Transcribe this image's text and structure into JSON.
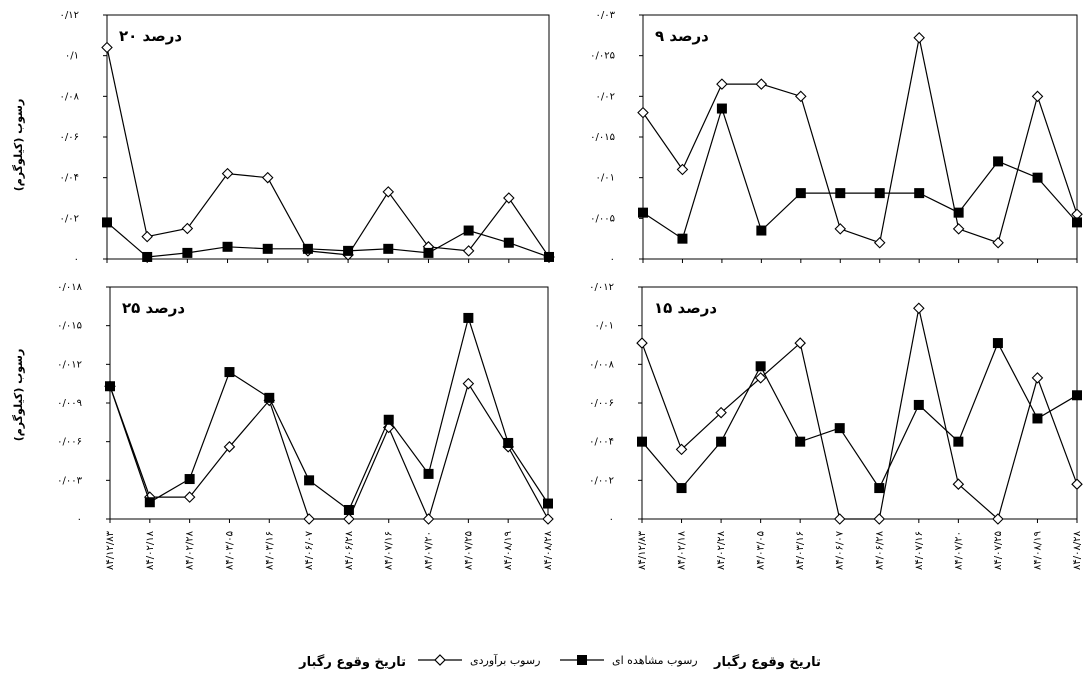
{
  "chart_data": [
    {
      "type": "line",
      "panel_label": "۲۰ درصد",
      "ylabel": "رسوب (کیلوگرم)",
      "y_ticks": [
        "۰",
        "۰/۰۲",
        "۰/۰۴",
        "۰/۰۶",
        "۰/۰۸",
        "۰/۱",
        "۰/۱۲"
      ],
      "ylim": [
        0,
        0.12
      ],
      "series": [
        {
          "name": "رسوب برآوردی",
          "marker": "diamond",
          "values": [
            0.104,
            0.011,
            0.015,
            0.042,
            0.04,
            0.004,
            0.002,
            0.033,
            0.006,
            0.004,
            0.03,
            0.001
          ]
        },
        {
          "name": "رسوب مشاهده ای",
          "marker": "square",
          "values": [
            0.018,
            0.001,
            0.003,
            0.006,
            0.005,
            0.005,
            0.004,
            0.005,
            0.003,
            0.014,
            0.008,
            0.001
          ]
        }
      ]
    },
    {
      "type": "line",
      "panel_label": "۹ درصد",
      "ylabel": "",
      "y_ticks": [
        "۰",
        "۰/۰۰۵",
        "۰/۰۱",
        "۰/۰۱۵",
        "۰/۰۲",
        "۰/۰۲۵",
        "۰/۰۳"
      ],
      "ylim": [
        0,
        0.03
      ],
      "series": [
        {
          "name": "رسوب برآوردی",
          "marker": "diamond",
          "values": [
            0.018,
            0.011,
            0.0215,
            0.0215,
            0.02,
            0.0037,
            0.002,
            0.0272,
            0.0037,
            0.002,
            0.02,
            0.0055
          ]
        },
        {
          "name": "رسوب مشاهده ای",
          "marker": "square",
          "values": [
            0.0057,
            0.0025,
            0.0185,
            0.0035,
            0.0081,
            0.0081,
            0.0081,
            0.0081,
            0.0057,
            0.012,
            0.01,
            0.0045
          ]
        }
      ]
    },
    {
      "type": "line",
      "panel_label": "۲۵ درصد",
      "ylabel": "رسوب (کیلوگرم)",
      "y_ticks": [
        "۰",
        "۰/۰۰۳",
        "۰/۰۰۶",
        "۰/۰۰۹",
        "۰/۰۱۲",
        "۰/۰۱۵",
        "۰/۰۱۸"
      ],
      "ylim": [
        0,
        0.018
      ],
      "series": [
        {
          "name": "رسوب برآوردی",
          "marker": "diamond",
          "values": [
            0.0103,
            0.0017,
            0.0017,
            0.0056,
            0.0092,
            0.0,
            0.0,
            0.0071,
            0.0,
            0.0105,
            0.0056,
            0.0
          ]
        },
        {
          "name": "رسوب مشاهده ای",
          "marker": "square",
          "values": [
            0.0103,
            0.0013,
            0.0031,
            0.0114,
            0.0094,
            0.003,
            0.0007,
            0.0077,
            0.0035,
            0.0156,
            0.0059,
            0.0012
          ]
        }
      ]
    },
    {
      "type": "line",
      "panel_label": "۱۵ درصد",
      "ylabel": "",
      "y_ticks": [
        "۰",
        "۰/۰۰۲",
        "۰/۰۰۴",
        "۰/۰۰۶",
        "۰/۰۰۸",
        "۰/۰۱",
        "۰/۰۱۲"
      ],
      "ylim": [
        0,
        0.012
      ],
      "series": [
        {
          "name": "رسوب برآوردی",
          "marker": "diamond",
          "values": [
            0.0091,
            0.0036,
            0.0055,
            0.0073,
            0.0091,
            0.0,
            0.0,
            0.0109,
            0.0018,
            0.0,
            0.0073,
            0.0018
          ]
        },
        {
          "name": "رسوب مشاهده ای",
          "marker": "square",
          "values": [
            0.004,
            0.0016,
            0.004,
            0.0079,
            0.004,
            0.0047,
            0.0016,
            0.0059,
            0.004,
            0.0091,
            0.0052,
            0.0064
          ]
        }
      ]
    }
  ],
  "x_categories": [
    "۸۴/۱۲/۸۳",
    "۸۴/۰۲/۱۸",
    "۸۴/۰۲/۲۸",
    "۸۴/۰۳/۰۵",
    "۸۴/۰۳/۱۶",
    "۸۴/۰۶/۰۷",
    "۸۴/۰۶/۲۸",
    "۸۴/۰۷/۱۶",
    "۸۴/۰۷/۲۰",
    "۸۴/۰۷/۲۵",
    "۸۴/۰۸/۱۹",
    "۸۴/۰۸/۲۸"
  ],
  "legend": {
    "estimated": "رسوب برآوردی",
    "observed": "رسوب مشاهده ای"
  },
  "xlabel_left": "تاریخ وقوع رگبار",
  "xlabel_right": "تاریخ وقوع رگبار",
  "colors": {
    "line": "#000000",
    "background": "#ffffff"
  }
}
